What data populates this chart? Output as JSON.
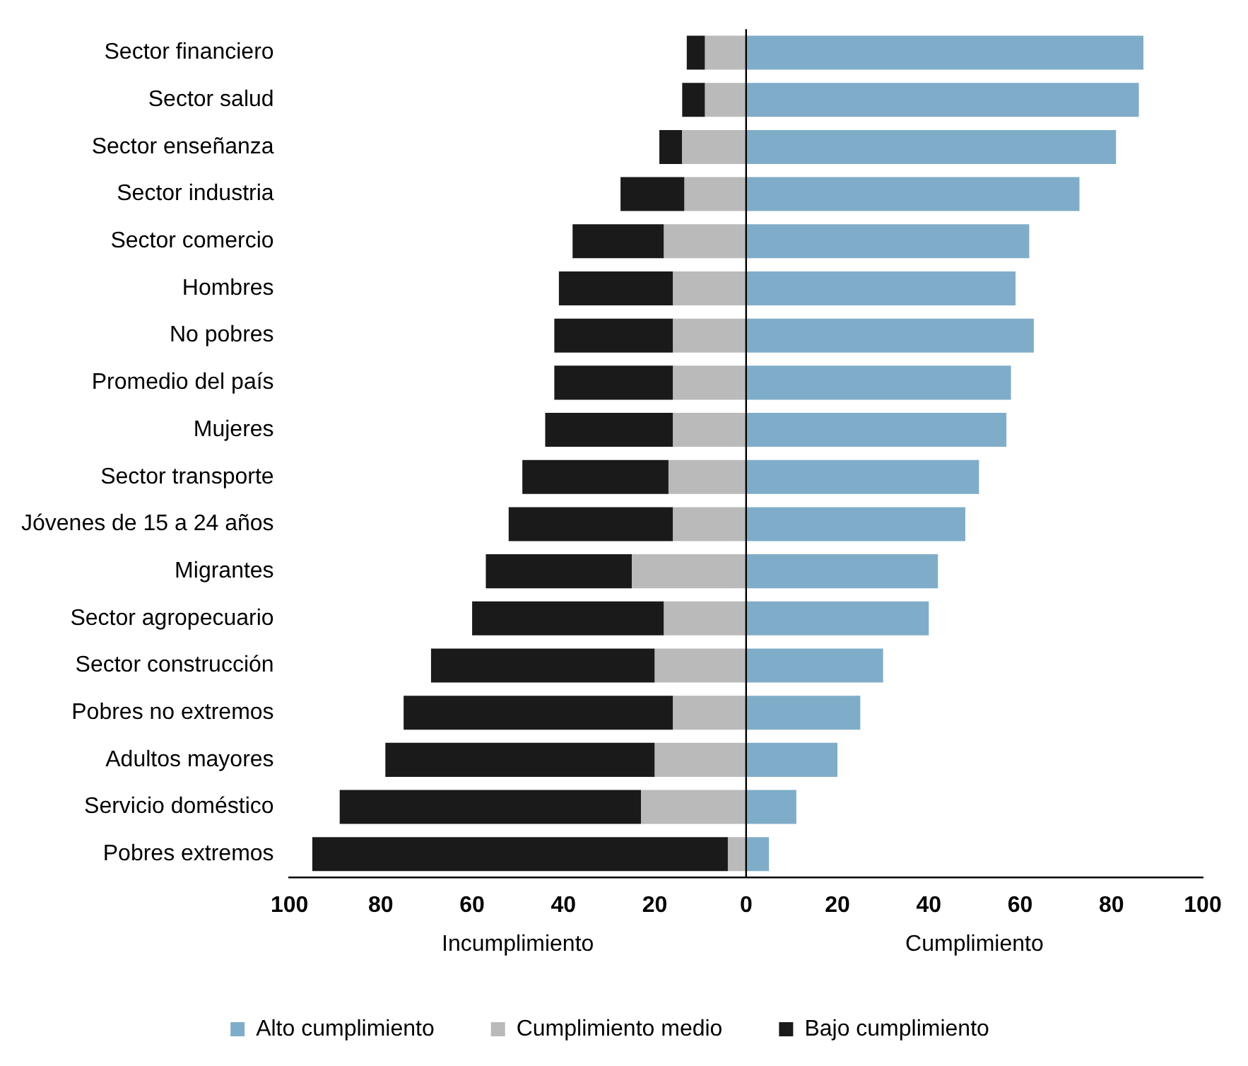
{
  "chart_data": {
    "type": "bar",
    "orientation": "horizontal",
    "stacked": true,
    "categories": [
      "Sector financiero",
      "Sector salud",
      "Sector enseñanza",
      "Sector industria",
      "Sector comercio",
      "Hombres",
      "No pobres",
      "Promedio del país",
      "Mujeres",
      "Sector transporte",
      "Jóvenes de 15 a 24 años",
      "Migrantes",
      "Sector agropecuario",
      "Sector construcción",
      "Pobres no extremos",
      "Adultos mayores",
      "Servicio doméstico",
      "Pobres extremos"
    ],
    "series": [
      {
        "name": "Alto cumplimiento",
        "color": "#7fadc9",
        "values": [
          87,
          86,
          81,
          73,
          62,
          59,
          63,
          58,
          57,
          51,
          48,
          42,
          40,
          30,
          25,
          20,
          11,
          5
        ]
      },
      {
        "name": "Cumplimiento medio",
        "color": "#bababa",
        "values": [
          -9,
          -9,
          -14,
          -13.5,
          -18,
          -16,
          -16,
          -16,
          -16,
          -17,
          -16,
          -25,
          -18,
          -20,
          -16,
          -20,
          -23,
          -4
        ]
      },
      {
        "name": "Bajo cumplimiento",
        "color": "#1a1a1a",
        "values": [
          -4,
          -5,
          -5,
          -14,
          -20,
          -25,
          -26,
          -26,
          -28,
          -32,
          -36,
          -32,
          -42,
          -49,
          -59,
          -59,
          -66,
          -91
        ]
      }
    ],
    "xlim": [
      -100,
      100
    ],
    "xticks": [
      {
        "value": -100,
        "label": "100"
      },
      {
        "value": -80,
        "label": "80"
      },
      {
        "value": -60,
        "label": "60"
      },
      {
        "value": -40,
        "label": "40"
      },
      {
        "value": -20,
        "label": "20"
      },
      0,
      20,
      40,
      60,
      80,
      100
    ],
    "annotations": [
      "Incumplimiento",
      "Cumplimiento"
    ],
    "ref_lines": [
      {
        "axis": "x",
        "value": 0,
        "color": "#000000"
      }
    ],
    "grid": false,
    "legend": "bottom"
  }
}
